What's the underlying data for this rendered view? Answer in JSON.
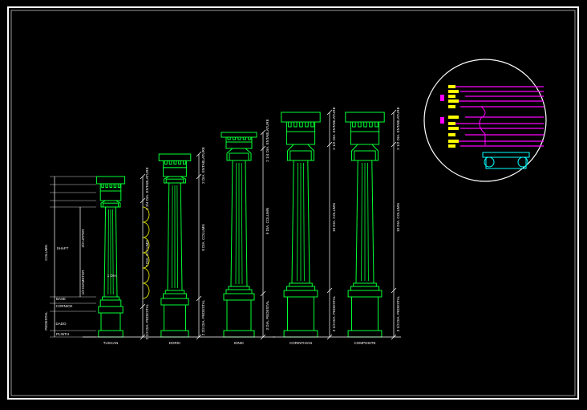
{
  "orders": [
    {
      "name": "TUSCAN",
      "dims": [
        "1 3/4 DIA. ENTABLATURE",
        "7 DIA. COLUMN",
        "2 1/3 DIA. PEDESTAL"
      ]
    },
    {
      "name": "DORIC",
      "dims": [
        "2 DIA. ENTABLATURE",
        "8 DIA. COLUMN",
        "2 2/3 DIA. PEDESTAL"
      ]
    },
    {
      "name": "IONIC",
      "dims": [
        "2 1/4 DIA. ENTABLATURE",
        "9 DIA. COLUMN",
        "3 DIA. PEDESTAL"
      ]
    },
    {
      "name": "CORINTHIAN",
      "dims": [
        "2 1/2 DIA. ENTABLATURE",
        "10 DIA. COLUMN",
        "3 1/3 DIA. PEDESTAL"
      ]
    },
    {
      "name": "COMPOSITE",
      "dims": [
        "2 1/2 DIA. ENTABLATURE",
        "10 DIA. COLUMN",
        "3 1/3 DIA. PEDESTAL"
      ]
    }
  ],
  "parts": {
    "column": "COLUMN",
    "pedestal": "PEDESTAL",
    "shaft": "SHAFT",
    "base": "BASE",
    "cornice": "CORNICE",
    "dado": "DADO",
    "plinth": "PLINTH"
  },
  "notes": {
    "upper": "2/3 UPPER",
    "lower": "1/3 DIAMETER",
    "diameter": "1 DIA."
  }
}
